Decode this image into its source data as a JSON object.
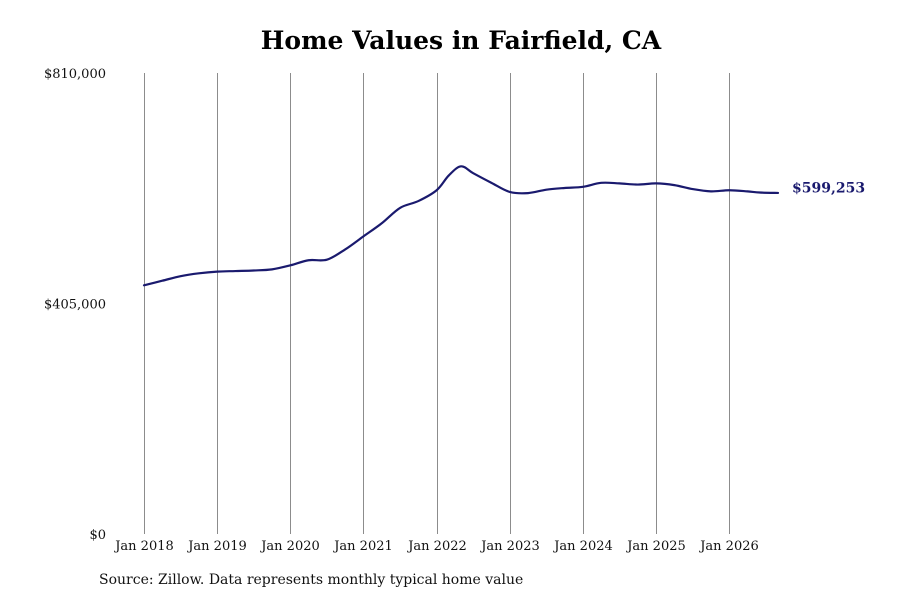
{
  "chart_data": {
    "type": "line",
    "title": "Home Values in Fairfield, CA",
    "xlabel": "",
    "ylabel": "",
    "ylim": [
      0,
      810000
    ],
    "y_ticks": [
      0,
      405000,
      810000
    ],
    "y_tick_labels": [
      "$0",
      "$405,000",
      "$810,000"
    ],
    "x_ticks": [
      "2018-01",
      "2019-01",
      "2020-01",
      "2021-01",
      "2022-01",
      "2023-01",
      "2024-01",
      "2025-01",
      "2026-01"
    ],
    "x_tick_labels": [
      "Jan 2018",
      "Jan 2019",
      "Jan 2020",
      "Jan 2021",
      "Jan 2022",
      "Jan 2023",
      "Jan 2024",
      "Jan 2025",
      "Jan 2026"
    ],
    "xlim": [
      "2018-01",
      "2026-09"
    ],
    "grid": "vertical",
    "series": [
      {
        "color": "#1a1a6e",
        "end_label": "$599,253",
        "points": [
          [
            "2018-01",
            437000
          ],
          [
            "2018-04",
            445000
          ],
          [
            "2018-07",
            453000
          ],
          [
            "2018-10",
            458000
          ],
          [
            "2019-01",
            461000
          ],
          [
            "2019-04",
            462000
          ],
          [
            "2019-07",
            463000
          ],
          [
            "2019-10",
            465000
          ],
          [
            "2020-01",
            472000
          ],
          [
            "2020-04",
            481000
          ],
          [
            "2020-07",
            482000
          ],
          [
            "2020-10",
            500000
          ],
          [
            "2021-01",
            523000
          ],
          [
            "2021-04",
            546000
          ],
          [
            "2021-07",
            573000
          ],
          [
            "2021-10",
            585000
          ],
          [
            "2022-01",
            604000
          ],
          [
            "2022-03",
            630000
          ],
          [
            "2022-05",
            646000
          ],
          [
            "2022-07",
            634000
          ],
          [
            "2022-10",
            617000
          ],
          [
            "2023-01",
            601000
          ],
          [
            "2023-04",
            599000
          ],
          [
            "2023-07",
            605000
          ],
          [
            "2023-10",
            608000
          ],
          [
            "2024-01",
            610000
          ],
          [
            "2024-04",
            617000
          ],
          [
            "2024-07",
            616000
          ],
          [
            "2024-10",
            614000
          ],
          [
            "2025-01",
            616000
          ],
          [
            "2025-04",
            613000
          ],
          [
            "2025-07",
            606000
          ],
          [
            "2025-10",
            602000
          ],
          [
            "2026-01",
            604000
          ],
          [
            "2026-04",
            602000
          ],
          [
            "2026-06",
            600000
          ],
          [
            "2026-09",
            599253
          ]
        ]
      }
    ]
  },
  "source_note": "Source: Zillow. Data represents monthly typical home value"
}
